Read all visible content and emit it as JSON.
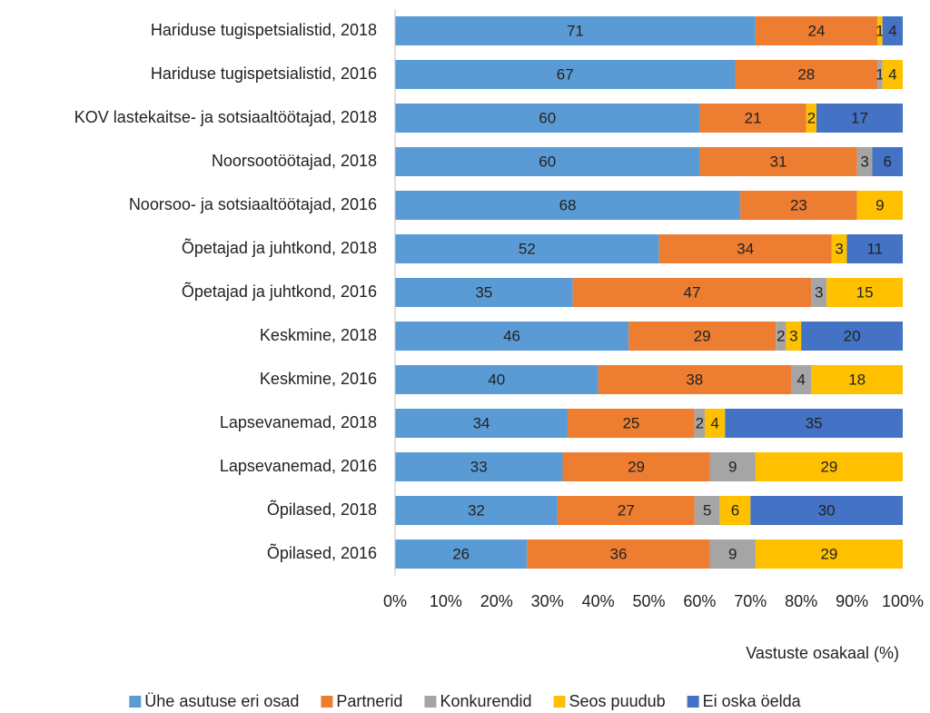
{
  "chart_data": {
    "type": "stacked_barh",
    "categories": [
      "Hariduse tugispetsialistid, 2018",
      "Hariduse tugispetsialistid, 2016",
      "KOV lastekaitse- ja sotsiaaltöötajad, 2018",
      "Noorsootöötajad, 2018",
      "Noorsoo- ja sotsiaaltöötajad, 2016",
      "Õpetajad ja juhtkond, 2018",
      "Õpetajad ja juhtkond, 2016",
      "Keskmine, 2018",
      "Keskmine, 2016",
      "Lapsevanemad, 2018",
      "Lapsevanemad, 2016",
      "Õpilased, 2018",
      "Õpilased, 2016"
    ],
    "series": [
      {
        "name": "Ühe asutuse eri osad",
        "color": "#5b9bd5",
        "values": [
          71,
          67,
          60,
          60,
          68,
          52,
          35,
          46,
          40,
          34,
          33,
          32,
          26
        ]
      },
      {
        "name": "Partnerid",
        "color": "#ed7d31",
        "values": [
          24,
          28,
          21,
          31,
          23,
          34,
          47,
          29,
          38,
          25,
          29,
          27,
          36
        ]
      },
      {
        "name": "Konkurendid",
        "color": "#a5a5a5",
        "values": [
          null,
          1,
          null,
          3,
          null,
          null,
          3,
          2,
          4,
          2,
          9,
          5,
          9
        ]
      },
      {
        "name": "Seos puudub",
        "color": "#ffc000",
        "values": [
          1,
          4,
          2,
          null,
          9,
          3,
          15,
          3,
          18,
          4,
          29,
          6,
          29
        ]
      },
      {
        "name": "Ei oska öelda",
        "color": "#4472c4",
        "values": [
          4,
          null,
          17,
          6,
          null,
          11,
          null,
          20,
          null,
          35,
          null,
          30,
          null
        ]
      }
    ],
    "x_label": "Vastuste osakaal (%)",
    "xlim": [
      0,
      100
    ],
    "xticks": [
      {
        "value": 0,
        "label": "0%"
      },
      {
        "value": 10,
        "label": "10%"
      },
      {
        "value": 20,
        "label": "20%"
      },
      {
        "value": 30,
        "label": "30%"
      },
      {
        "value": 40,
        "label": "40%"
      },
      {
        "value": 50,
        "label": "50%"
      },
      {
        "value": 60,
        "label": "60%"
      },
      {
        "value": 70,
        "label": "70%"
      },
      {
        "value": 80,
        "label": "80%"
      },
      {
        "value": 90,
        "label": "90%"
      },
      {
        "value": 100,
        "label": "100%"
      }
    ],
    "legend": "bottom"
  }
}
